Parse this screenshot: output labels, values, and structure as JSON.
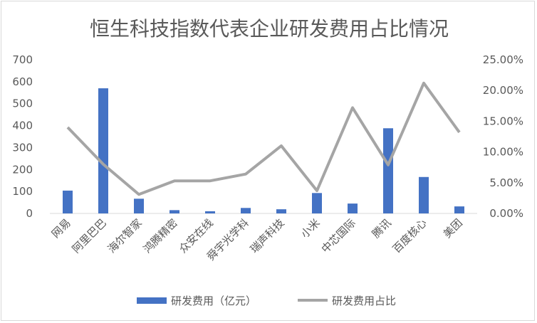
{
  "chart_data": {
    "type": "bar",
    "title": "恒生科技指数代表企业研发费用占比情况",
    "categories": [
      "网易",
      "阿里巴巴",
      "海尔智家",
      "鸿腾精密",
      "众安在线",
      "舜宇光学科",
      "瑞声科技",
      "小米",
      "中芯国际",
      "腾讯",
      "百度核心",
      "美团"
    ],
    "series": [
      {
        "name": "研发费用（亿元）",
        "type": "bar",
        "axis": "left",
        "color": "#4472c4",
        "values": [
          104,
          570,
          67,
          15,
          10,
          25,
          19,
          93,
          45,
          388,
          166,
          32
        ]
      },
      {
        "name": "研发费用占比",
        "type": "line",
        "axis": "right",
        "color": "#a5a5a5",
        "values": [
          0.14,
          0.08,
          0.031,
          0.053,
          0.053,
          0.064,
          0.11,
          0.037,
          0.172,
          0.079,
          0.212,
          0.132
        ]
      }
    ],
    "y_left": {
      "min": 0,
      "max": 700,
      "ticks": [
        "0",
        "100",
        "200",
        "300",
        "400",
        "500",
        "600",
        "700"
      ]
    },
    "y_right": {
      "min": 0,
      "max": 0.25,
      "ticks": [
        "0.00%",
        "5.00%",
        "10.00%",
        "15.00%",
        "20.00%",
        "25.00%"
      ]
    },
    "grid": false,
    "legend_position": "bottom"
  }
}
